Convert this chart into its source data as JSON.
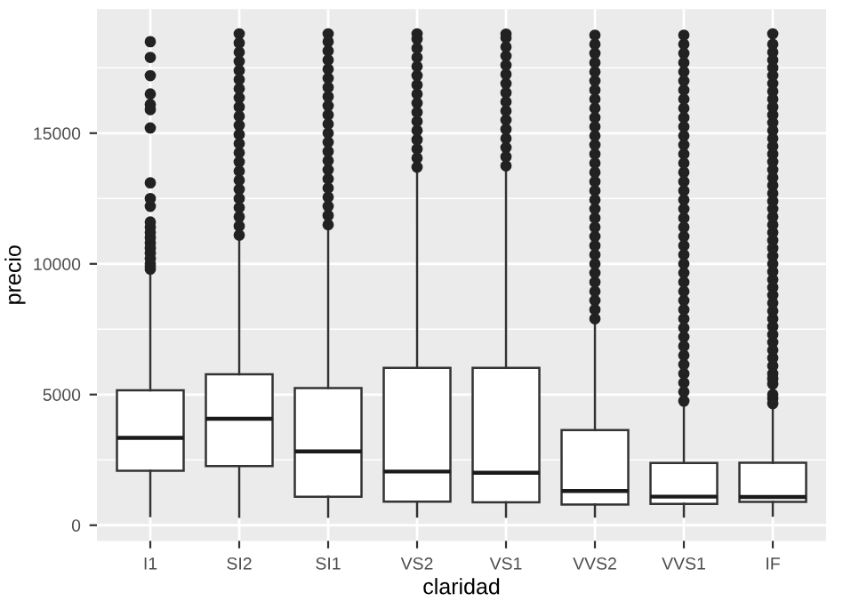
{
  "chart_data": {
    "type": "box",
    "xlabel": "claridad",
    "ylabel": "precio",
    "categories": [
      "I1",
      "SI2",
      "SI1",
      "VS2",
      "VS1",
      "VVS2",
      "VVS1",
      "IF"
    ],
    "ylim": [
      -600,
      19750
    ],
    "yticks": [
      0,
      5000,
      10000,
      15000
    ],
    "grid": true,
    "marker": "circle",
    "boxes": [
      {
        "low": 345,
        "q1": 2080,
        "median": 3344,
        "q3": 5161,
        "high": 9700,
        "outliers": [
          9800,
          9900,
          10000,
          10200,
          10400,
          10600,
          10800,
          11000,
          11200,
          11400,
          11600,
          12200,
          12500,
          13100,
          15200,
          15900,
          16100,
          16500,
          17200,
          17900,
          18500
        ]
      },
      {
        "low": 326,
        "q1": 2264,
        "median": 4072,
        "q3": 5777,
        "high": 11000,
        "outliers": [
          11100,
          11450,
          11800,
          12150,
          12500,
          12850,
          13200,
          13550,
          13900,
          14250,
          14600,
          14950,
          15300,
          15650,
          16000,
          16350,
          16700,
          17050,
          17400,
          17750,
          18100,
          18450,
          18800
        ]
      },
      {
        "low": 326,
        "q1": 1089,
        "median": 2822,
        "q3": 5250,
        "high": 11450,
        "outliers": [
          11500,
          11850,
          12200,
          12550,
          12900,
          13250,
          13600,
          13950,
          14300,
          14650,
          15000,
          15350,
          15700,
          16050,
          16400,
          16750,
          17100,
          17450,
          17800,
          18150,
          18500,
          18800
        ]
      },
      {
        "low": 334,
        "q1": 900,
        "median": 2054,
        "q3": 6024,
        "high": 13650,
        "outliers": [
          13700,
          14050,
          14400,
          14750,
          15100,
          15450,
          15800,
          16150,
          16500,
          16850,
          17200,
          17550,
          17900,
          18250,
          18600,
          18800
        ]
      },
      {
        "low": 327,
        "q1": 876,
        "median": 2005,
        "q3": 6023,
        "high": 13700,
        "outliers": [
          13750,
          14100,
          14450,
          14800,
          15150,
          15500,
          15850,
          16200,
          16550,
          16900,
          17250,
          17600,
          17950,
          18300,
          18650,
          18790
        ]
      },
      {
        "low": 336,
        "q1": 794,
        "median": 1311,
        "q3": 3638,
        "high": 7850,
        "outliers": [
          7900,
          8250,
          8600,
          8950,
          9300,
          9650,
          10000,
          10350,
          10700,
          11050,
          11400,
          11750,
          12100,
          12450,
          12800,
          13150,
          13500,
          13850,
          14200,
          14550,
          14900,
          15250,
          15600,
          15950,
          16300,
          16650,
          17000,
          17350,
          17700,
          18050,
          18400,
          18750
        ]
      },
      {
        "low": 336,
        "q1": 816,
        "median": 1093,
        "q3": 2379,
        "high": 4700,
        "outliers": [
          4750,
          5100,
          5450,
          5800,
          6150,
          6500,
          6850,
          7200,
          7550,
          7900,
          8250,
          8600,
          8950,
          9300,
          9650,
          10000,
          10350,
          10700,
          11050,
          11400,
          11750,
          12100,
          12450,
          12800,
          13150,
          13500,
          13850,
          14200,
          14550,
          14900,
          15250,
          15600,
          15950,
          16300,
          16650,
          17000,
          17350,
          17700,
          18050,
          18400,
          18750
        ]
      },
      {
        "low": 369,
        "q1": 895,
        "median": 1080,
        "q3": 2388,
        "high": 4600,
        "outliers": [
          4650,
          4850,
          5000,
          5400,
          5600,
          5800,
          6100,
          6400,
          6700,
          7000,
          7300,
          7600,
          7900,
          8200,
          8500,
          8800,
          9100,
          9400,
          9700,
          10000,
          10300,
          10600,
          10900,
          11200,
          11500,
          11800,
          12100,
          12400,
          12700,
          13000,
          13300,
          13600,
          13900,
          14200,
          14500,
          14800,
          15100,
          15400,
          15700,
          16000,
          16300,
          16600,
          16900,
          17200,
          17500,
          17800,
          18100,
          18400,
          18800
        ]
      }
    ]
  }
}
